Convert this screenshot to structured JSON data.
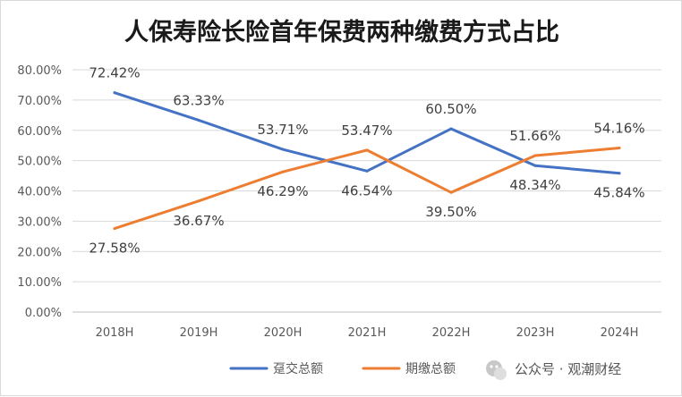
{
  "chart_data": {
    "type": "line",
    "title": "人保寿险长险首年保费两种缴费方式占比",
    "xlabel": "",
    "ylabel": "",
    "categories": [
      "2018H",
      "2019H",
      "2020H",
      "2021H",
      "2022H",
      "2023H",
      "2024H"
    ],
    "ylim": [
      0,
      80
    ],
    "yticks": [
      "0.00%",
      "10.00%",
      "20.00%",
      "30.00%",
      "40.00%",
      "50.00%",
      "60.00%",
      "70.00%",
      "80.00%"
    ],
    "grid": true,
    "legend_position": "bottom",
    "series": [
      {
        "name": "趸交总额",
        "color": "#4472c4",
        "values": [
          72.42,
          63.33,
          53.71,
          46.54,
          60.5,
          48.34,
          45.84
        ],
        "labels": [
          "72.42%",
          "63.33%",
          "53.71%",
          "46.54%",
          "60.50%",
          "48.34%",
          "45.84%"
        ]
      },
      {
        "name": "期缴总额",
        "color": "#ed7d31",
        "values": [
          27.58,
          36.67,
          46.29,
          53.47,
          39.5,
          51.66,
          54.16
        ],
        "labels": [
          "27.58%",
          "36.67%",
          "46.29%",
          "53.47%",
          "39.50%",
          "51.66%",
          "54.16%"
        ]
      }
    ]
  },
  "watermark": {
    "text": "公众号 · 观潮财经",
    "icon": "wechat-icon"
  }
}
